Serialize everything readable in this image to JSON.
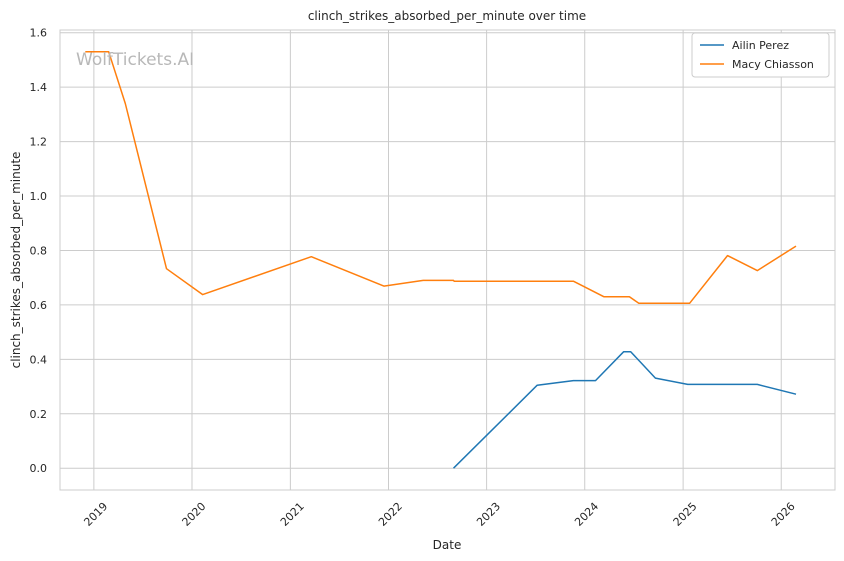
{
  "chart_data": {
    "type": "line",
    "title": "clinch_strikes_absorbed_per_minute over time",
    "xlabel": "Date",
    "ylabel": "clinch_strikes_absorbed_per_minute",
    "watermark": "WolfTickets.AI",
    "x_ticks": [
      "2019",
      "2020",
      "2021",
      "2022",
      "2023",
      "2024",
      "2025",
      "2026"
    ],
    "y_ticks": [
      "0.0",
      "0.2",
      "0.4",
      "0.6",
      "0.8",
      "1.0",
      "1.2",
      "1.4",
      "1.6"
    ],
    "xlim": [
      "2018-08-28",
      "2026-07-20"
    ],
    "ylim": [
      -0.08,
      1.61
    ],
    "grid": true,
    "legend_position": "top-right",
    "series": [
      {
        "name": "Ailin Perez",
        "color": "#1f77b4",
        "points": [
          [
            "2022-08-31",
            0.0
          ],
          [
            "2023-07-08",
            0.305
          ],
          [
            "2023-11-20",
            0.322
          ],
          [
            "2024-02-10",
            0.322
          ],
          [
            "2024-05-25",
            0.428
          ],
          [
            "2024-06-20",
            0.428
          ],
          [
            "2024-09-20",
            0.331
          ],
          [
            "2025-01-18",
            0.308
          ],
          [
            "2025-10-04",
            0.308
          ],
          [
            "2026-02-25",
            0.272
          ]
        ]
      },
      {
        "name": "Macy Chiasson",
        "color": "#ff7f0e",
        "points": [
          [
            "2018-11-30",
            1.53
          ],
          [
            "2019-02-25",
            1.53
          ],
          [
            "2019-04-28",
            1.34
          ],
          [
            "2019-09-28",
            0.733
          ],
          [
            "2020-02-10",
            0.638
          ],
          [
            "2021-03-20",
            0.777
          ],
          [
            "2021-12-15",
            0.669
          ],
          [
            "2022-05-10",
            0.69
          ],
          [
            "2022-08-31",
            0.69
          ],
          [
            "2022-09-02",
            0.687
          ],
          [
            "2023-11-20",
            0.687
          ],
          [
            "2024-03-12",
            0.63
          ],
          [
            "2024-06-15",
            0.63
          ],
          [
            "2024-07-20",
            0.606
          ],
          [
            "2025-01-25",
            0.606
          ],
          [
            "2025-06-15",
            0.781
          ],
          [
            "2025-10-04",
            0.726
          ],
          [
            "2026-02-25",
            0.816
          ]
        ]
      }
    ]
  }
}
